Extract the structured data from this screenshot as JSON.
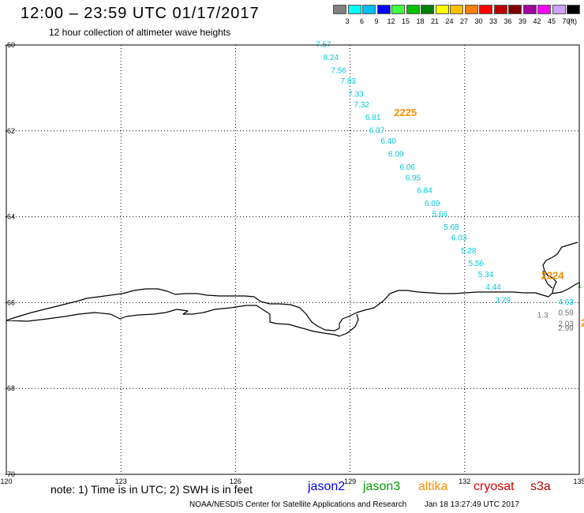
{
  "header": {
    "title": "12:00 – 23:59 UTC 01/17/2017",
    "subtitle": "12 hour collection of altimeter wave heights"
  },
  "legend": {
    "colors": [
      "#808080",
      "#00ffff",
      "#00c0ff",
      "#0000ff",
      "#40ff40",
      "#00c000",
      "#008000",
      "#ffff00",
      "#ffc000",
      "#ff8000",
      "#ff0000",
      "#c00000",
      "#800000",
      "#a000a0",
      "#ff00ff",
      "#d0a0ff",
      "#000000"
    ],
    "labels": [
      "3",
      "6",
      "9",
      "12",
      "15",
      "18",
      "21",
      "24",
      "27",
      "30",
      "33",
      "36",
      "39",
      "42",
      "45",
      "70"
    ],
    "unit": "(ft)"
  },
  "axes": {
    "x_ticks": [
      "120",
      "123",
      "126",
      "129",
      "132",
      "135"
    ],
    "y_ticks": [
      "-60",
      "-62",
      "-64",
      "-66",
      "-68",
      "-70"
    ]
  },
  "map_data": {
    "lon_range": [
      120,
      135
    ],
    "lat_range": [
      -70,
      -60
    ],
    "track": [
      {
        "value": "7.57",
        "lon": 128.1,
        "lat": -60.05
      },
      {
        "value": "8.24",
        "lon": 128.3,
        "lat": -60.35
      },
      {
        "value": "7.56",
        "lon": 128.5,
        "lat": -60.65
      },
      {
        "value": "7.83",
        "lon": 128.75,
        "lat": -60.9
      },
      {
        "value": "7.33",
        "lon": 128.95,
        "lat": -61.2
      },
      {
        "value": "7.32",
        "lon": 129.1,
        "lat": -61.45
      },
      {
        "value": "6.81",
        "lon": 129.4,
        "lat": -61.75
      },
      {
        "value": "6.37",
        "lon": 129.5,
        "lat": -62.05
      },
      {
        "value": "6.40",
        "lon": 129.8,
        "lat": -62.3
      },
      {
        "value": "6.09",
        "lon": 130.0,
        "lat": -62.6
      },
      {
        "value": "6.06",
        "lon": 130.3,
        "lat": -62.9
      },
      {
        "value": "6.95",
        "lon": 130.45,
        "lat": -63.15
      },
      {
        "value": "6.84",
        "lon": 130.75,
        "lat": -63.45
      },
      {
        "value": "6.09",
        "lon": 130.95,
        "lat": -63.75
      },
      {
        "value": "5.66",
        "lon": 131.15,
        "lat": -64.0
      },
      {
        "value": "5.68",
        "lon": 131.45,
        "lat": -64.3
      },
      {
        "value": "6.03",
        "lon": 131.65,
        "lat": -64.55
      },
      {
        "value": "5.28",
        "lon": 131.9,
        "lat": -64.85
      },
      {
        "value": "5.56",
        "lon": 132.1,
        "lat": -65.15
      },
      {
        "value": "5.34",
        "lon": 132.35,
        "lat": -65.4
      },
      {
        "value": "4.44",
        "lon": 132.55,
        "lat": -65.7
      },
      {
        "value": "3.79",
        "lon": 132.8,
        "lat": -66.0
      }
    ],
    "track_color": "#00c8dc",
    "pass_labels": [
      {
        "text": "2225",
        "lon": 130.15,
        "lat": -61.65,
        "color": "#ff9000"
      },
      {
        "text": "2224",
        "lon": 134.0,
        "lat": -65.45,
        "color": "#ff9000"
      },
      {
        "text": "2",
        "lon": 135.05,
        "lat": -66.55,
        "color": "#ff9000"
      }
    ],
    "other_values": [
      {
        "text": "4.63",
        "lon": 134.45,
        "lat": -66.05,
        "color": "#00c8dc"
      },
      {
        "text": "1.3",
        "lon": 133.9,
        "lat": -66.35,
        "color": "#707070"
      },
      {
        "text": "0.59",
        "lon": 134.45,
        "lat": -66.3,
        "color": "#707070"
      },
      {
        "text": "2.03",
        "lon": 134.45,
        "lat": -66.55,
        "color": "#707070"
      },
      {
        "text": "2.99",
        "lon": 134.45,
        "lat": -66.65,
        "color": "#707070"
      },
      {
        "text": "1",
        "lon": 134.95,
        "lat": -65.65,
        "color": "#00a000"
      }
    ]
  },
  "satellites": [
    {
      "name": "jason2",
      "color": "#0000ff"
    },
    {
      "name": "jason3",
      "color": "#00a000"
    },
    {
      "name": "altika",
      "color": "#ff9000"
    },
    {
      "name": "cryosat",
      "color": "#e00000"
    },
    {
      "name": "s3a",
      "color": "#c00000"
    }
  ],
  "note": "note:  1) Time is in UTC;  2) SWH is in feet",
  "footer": {
    "credit": "NOAA/NESDIS Center for Satellite Applications and Research",
    "timestamp": "Jan 18 13:27:49 UTC 2017"
  }
}
